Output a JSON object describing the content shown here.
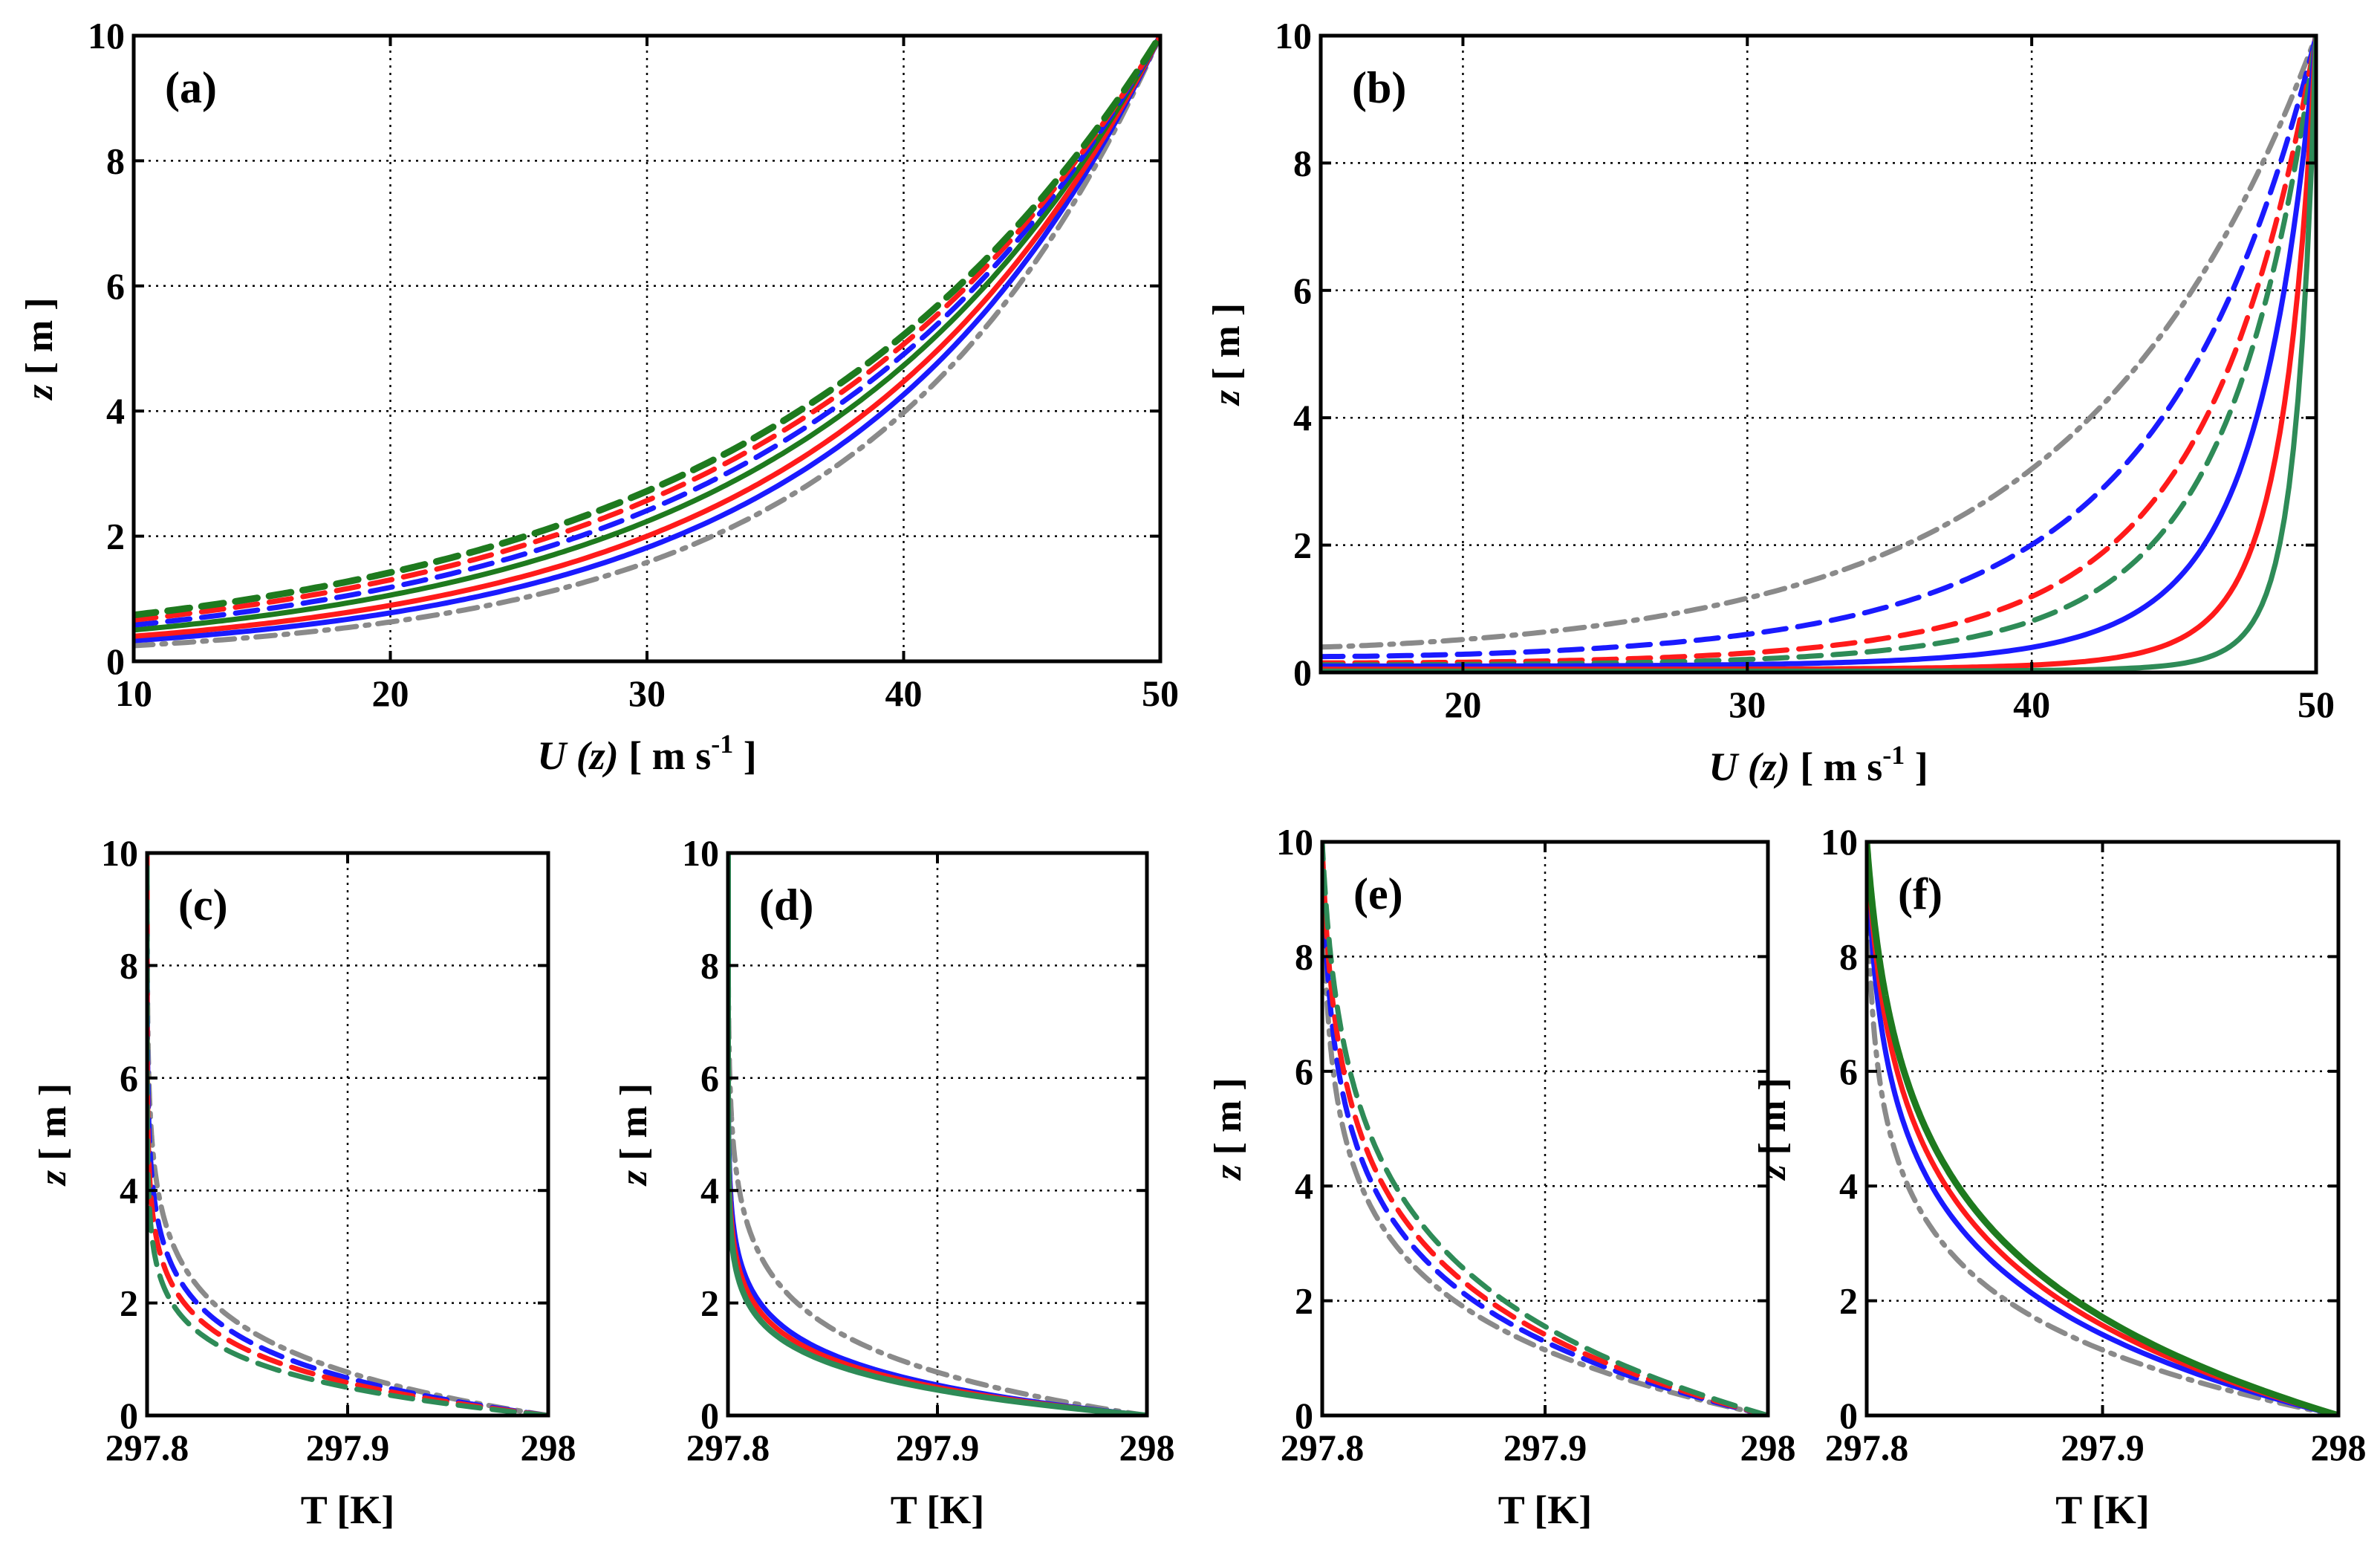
{
  "colors": {
    "blue": "#1a1aff",
    "red": "#ff1a1a",
    "green_dark": "#1e7a1e",
    "green_teal": "#2e8b57",
    "gray": "#8a8a8a"
  },
  "chart_data": [
    {
      "id": "a",
      "type": "line",
      "panel_label": "(a)",
      "xlabel_main": "U",
      "xlabel_var": "(z)",
      "xlabel_unit": "[ m s",
      "xlabel_sup": "-1",
      "xlabel_close": "]",
      "ylabel_var": "z",
      "ylabel_unit": "[ m ]",
      "xlim": [
        10,
        50
      ],
      "ylim": [
        0,
        10
      ],
      "xticks": [
        10,
        20,
        30,
        40,
        50
      ],
      "yticks": [
        0,
        2,
        4,
        6,
        8,
        10
      ],
      "xticklabels": [
        "10",
        "20",
        "30",
        "40",
        "50"
      ],
      "yticklabels": [
        "0",
        "2",
        "4",
        "6",
        "8",
        "10"
      ],
      "grid": true,
      "series": [
        {
          "name": "gray dash-dot",
          "color": "gray",
          "style": "dashdot",
          "u_min": 10,
          "u_max": 50,
          "z0": 0.25,
          "z1": 10,
          "p": 1.0,
          "width": 7
        },
        {
          "name": "blue solid",
          "color": "blue",
          "style": "solid",
          "u_min": 10,
          "u_max": 50,
          "z0": 0.33,
          "z1": 10,
          "p": 1.0,
          "width": 7
        },
        {
          "name": "red solid",
          "color": "red",
          "style": "solid",
          "u_min": 10,
          "u_max": 50,
          "z0": 0.4,
          "z1": 10,
          "p": 1.0,
          "width": 7
        },
        {
          "name": "green solid",
          "color": "green_dark",
          "style": "solid",
          "u_min": 10,
          "u_max": 50,
          "z0": 0.5,
          "z1": 10,
          "p": 1.0,
          "width": 7
        },
        {
          "name": "blue dashed",
          "color": "blue",
          "style": "dashed",
          "u_min": 10,
          "u_max": 50,
          "z0": 0.58,
          "z1": 10,
          "p": 1.0,
          "width": 7
        },
        {
          "name": "red dashed",
          "color": "red",
          "style": "dashed",
          "u_min": 10,
          "u_max": 50,
          "z0": 0.66,
          "z1": 10,
          "p": 1.0,
          "width": 7
        },
        {
          "name": "green dashed",
          "color": "green_dark",
          "style": "dashed",
          "u_min": 10,
          "u_max": 50,
          "z0": 0.74,
          "z1": 10,
          "p": 1.0,
          "width": 9
        }
      ]
    },
    {
      "id": "b",
      "type": "line",
      "panel_label": "(b)",
      "xlabel_main": "U",
      "xlabel_var": "(z)",
      "xlabel_unit": "[ m s",
      "xlabel_sup": "-1",
      "xlabel_close": "]",
      "ylabel_var": "z",
      "ylabel_unit": "[ m ]",
      "xlim": [
        15,
        50
      ],
      "ylim": [
        0,
        10
      ],
      "xticks": [
        20,
        30,
        40,
        50
      ],
      "yticks": [
        0,
        2,
        4,
        6,
        8,
        10
      ],
      "xticklabels": [
        "20",
        "30",
        "40",
        "50"
      ],
      "yticklabels": [
        "0",
        "2",
        "4",
        "6",
        "8",
        "10"
      ],
      "grid": true,
      "series": [
        {
          "name": "gray dash-dot",
          "color": "gray",
          "style": "dashdot",
          "u_min": 15,
          "u_max": 50,
          "z0": 0.4,
          "z1": 10,
          "p": 1.3,
          "width": 7
        },
        {
          "name": "blue dashed",
          "color": "blue",
          "style": "dashed",
          "u_min": 15,
          "u_max": 50,
          "z0": 0.25,
          "z1": 10,
          "p": 1.7,
          "width": 7
        },
        {
          "name": "red dashed",
          "color": "red",
          "style": "dashed",
          "u_min": 15,
          "u_max": 50,
          "z0": 0.15,
          "z1": 10,
          "p": 2.1,
          "width": 7
        },
        {
          "name": "green dashed",
          "color": "green_teal",
          "style": "dashed",
          "u_min": 15,
          "u_max": 50,
          "z0": 0.12,
          "z1": 10,
          "p": 2.5,
          "width": 7
        },
        {
          "name": "blue solid",
          "color": "blue",
          "style": "solid",
          "u_min": 15,
          "u_max": 50,
          "z0": 0.1,
          "z1": 10,
          "p": 3.6,
          "width": 7
        },
        {
          "name": "red solid",
          "color": "red",
          "style": "solid",
          "u_min": 15,
          "u_max": 50,
          "z0": 0.05,
          "z1": 10,
          "p": 5.5,
          "width": 7
        },
        {
          "name": "green solid",
          "color": "green_teal",
          "style": "solid",
          "u_min": 15,
          "u_max": 50,
          "z0": 0.02,
          "z1": 10,
          "p": 8.0,
          "width": 7
        }
      ]
    },
    {
      "id": "c",
      "type": "line",
      "panel_label": "(c)",
      "xlabel_main": "T",
      "xlabel_unit": "[K]",
      "ylabel_var": "z",
      "ylabel_unit": "[ m ]",
      "xlim": [
        297.8,
        298.0
      ],
      "ylim": [
        0,
        10
      ],
      "xticks": [
        297.8,
        297.9,
        298.0
      ],
      "yticks": [
        0,
        2,
        4,
        6,
        8,
        10
      ],
      "xticklabels": [
        "297.8",
        "297.9",
        "298"
      ],
      "yticklabels": [
        "0",
        "2",
        "4",
        "6",
        "8",
        "10"
      ],
      "grid": true,
      "series": [
        {
          "name": "gray dash-dot",
          "color": "gray",
          "style": "dashdot",
          "t0": 297.8,
          "decay": 0.037,
          "width": 7
        },
        {
          "name": "blue dashed",
          "color": "blue",
          "style": "dashed",
          "t0": 297.8,
          "decay": 0.032,
          "width": 7
        },
        {
          "name": "red dashed",
          "color": "red",
          "style": "dashed",
          "t0": 297.8,
          "decay": 0.028,
          "width": 7
        },
        {
          "name": "green dashed",
          "color": "green_teal",
          "style": "dashed",
          "t0": 297.8,
          "decay": 0.024,
          "width": 7
        }
      ]
    },
    {
      "id": "d",
      "type": "line",
      "panel_label": "(d)",
      "xlabel_main": "T",
      "xlabel_unit": "[K]",
      "ylabel_var": "z",
      "ylabel_unit": "[ m ]",
      "xlim": [
        297.8,
        298.0
      ],
      "ylim": [
        0,
        10
      ],
      "xticks": [
        297.8,
        297.9,
        298.0
      ],
      "yticks": [
        0,
        2,
        4,
        6,
        8,
        10
      ],
      "xticklabels": [
        "297.8",
        "297.9",
        "298"
      ],
      "yticklabels": [
        "0",
        "2",
        "4",
        "6",
        "8",
        "10"
      ],
      "grid": true,
      "series": [
        {
          "name": "gray dash-dot",
          "color": "gray",
          "style": "dashdot",
          "t0": 297.8,
          "decay": 0.037,
          "width": 7
        },
        {
          "name": "blue solid",
          "color": "blue",
          "style": "solid",
          "t0": 297.8,
          "decay": 0.026,
          "width": 7
        },
        {
          "name": "red solid",
          "color": "red",
          "style": "solid",
          "t0": 297.8,
          "decay": 0.024,
          "width": 7
        },
        {
          "name": "green solid",
          "color": "green_teal",
          "style": "solid",
          "t0": 297.8,
          "decay": 0.022,
          "width": 8
        }
      ]
    },
    {
      "id": "e",
      "type": "line",
      "panel_label": "(e)",
      "xlabel_main": "T",
      "xlabel_unit": "[K]",
      "ylabel_var": "z",
      "ylabel_unit": "[ m ]",
      "xlim": [
        297.8,
        298.0
      ],
      "ylim": [
        0,
        10
      ],
      "xticks": [
        297.8,
        297.9,
        298.0
      ],
      "yticks": [
        0,
        2,
        4,
        6,
        8,
        10
      ],
      "xticklabels": [
        "297.8",
        "297.9",
        "298"
      ],
      "yticklabels": [
        "0",
        "2",
        "4",
        "6",
        "8",
        "10"
      ],
      "grid": true,
      "series": [
        {
          "name": "gray dash-dot",
          "color": "gray",
          "style": "dashdot",
          "t0": 297.8,
          "decay": 0.055,
          "width": 7
        },
        {
          "name": "blue dashed",
          "color": "blue",
          "style": "dashed",
          "t0": 297.8,
          "decay": 0.062,
          "width": 7
        },
        {
          "name": "red dashed",
          "color": "red",
          "style": "dashed",
          "t0": 297.8,
          "decay": 0.068,
          "width": 7
        },
        {
          "name": "green dashed",
          "color": "green_teal",
          "style": "dashed",
          "t0": 297.8,
          "decay": 0.075,
          "width": 7
        }
      ]
    },
    {
      "id": "f",
      "type": "line",
      "panel_label": "(f)",
      "xlabel_main": "T",
      "xlabel_unit": "[K]",
      "ylabel_var": "z",
      "ylabel_unit": "[ m ]",
      "xlim": [
        297.8,
        298.0
      ],
      "ylim": [
        0,
        10
      ],
      "xticks": [
        297.8,
        297.9,
        298.0
      ],
      "yticks": [
        0,
        2,
        4,
        6,
        8,
        10
      ],
      "xticklabels": [
        "297.8",
        "297.9",
        "298"
      ],
      "yticklabels": [
        "0",
        "2",
        "4",
        "6",
        "8",
        "10"
      ],
      "grid": true,
      "series": [
        {
          "name": "gray dash-dot",
          "color": "gray",
          "style": "dashdot",
          "t0": 297.8,
          "decay": 0.055,
          "width": 7
        },
        {
          "name": "blue solid",
          "color": "blue",
          "style": "solid",
          "t0": 297.8,
          "decay": 0.068,
          "width": 7
        },
        {
          "name": "red solid",
          "color": "red",
          "style": "solid",
          "t0": 297.8,
          "decay": 0.076,
          "width": 7
        },
        {
          "name": "green solid",
          "color": "green_dark",
          "style": "solid",
          "t0": 297.8,
          "decay": 0.083,
          "width": 9
        }
      ]
    }
  ]
}
